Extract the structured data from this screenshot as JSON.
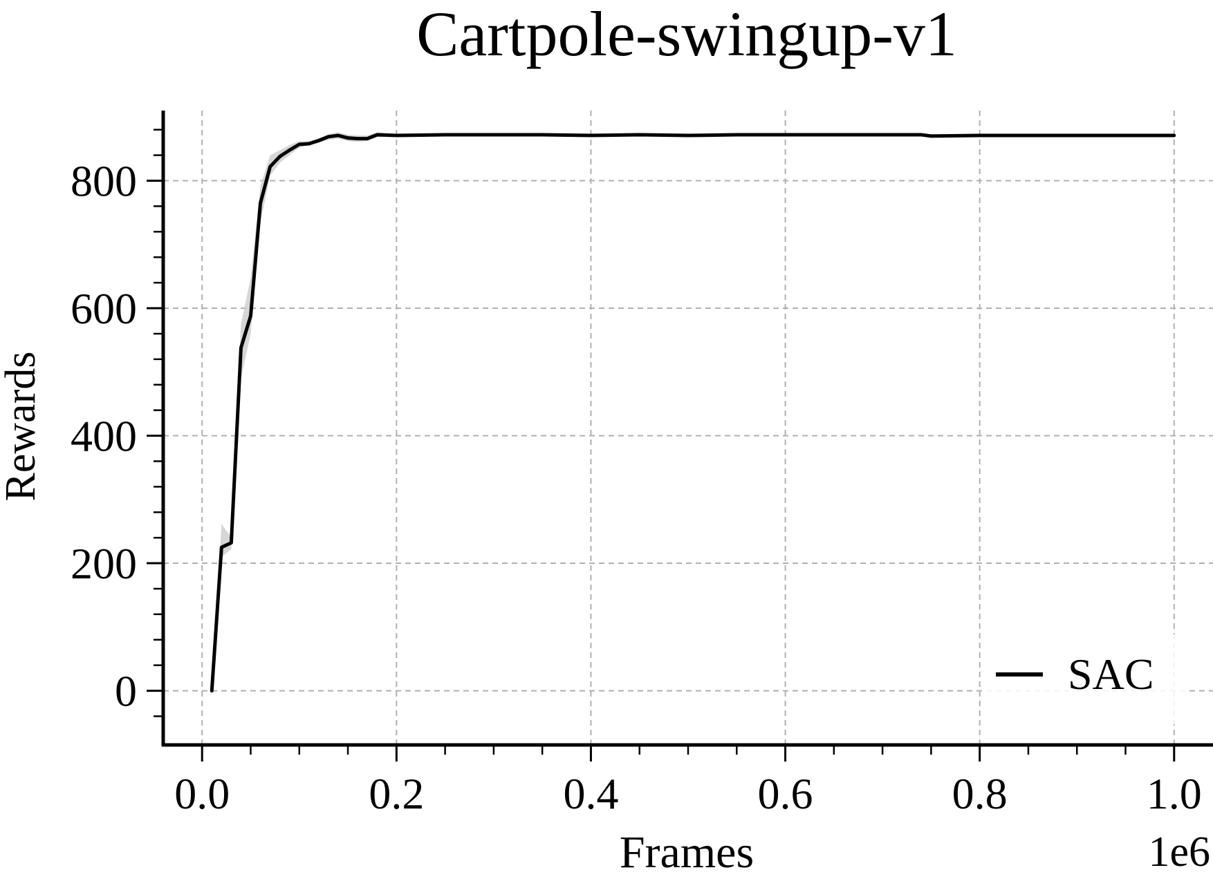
{
  "chart_data": {
    "type": "line",
    "title": "Cartpole-swingup-v1",
    "xlabel": "Frames",
    "ylabel": "Rewards",
    "x_offset_label": "1e6",
    "xlim": [
      -0.04,
      1.04
    ],
    "ylim": [
      -85,
      910
    ],
    "x_ticks": [
      0.0,
      0.2,
      0.4,
      0.6,
      0.8,
      1.0
    ],
    "x_tick_labels": [
      "0.0",
      "0.2",
      "0.4",
      "0.6",
      "0.8",
      "1.0"
    ],
    "y_ticks": [
      0,
      200,
      400,
      600,
      800
    ],
    "y_tick_labels": [
      "0",
      "200",
      "400",
      "600",
      "800"
    ],
    "grid": true,
    "legend_position": "bottom-right",
    "colors": {
      "line": "#000000",
      "band": "#c8c8c8",
      "grid": "#b0b0b0"
    },
    "series": [
      {
        "name": "SAC",
        "x": [
          0.01,
          0.02,
          0.03,
          0.04,
          0.05,
          0.06,
          0.07,
          0.08,
          0.09,
          0.1,
          0.11,
          0.12,
          0.13,
          0.14,
          0.15,
          0.16,
          0.17,
          0.18,
          0.2,
          0.25,
          0.3,
          0.35,
          0.4,
          0.45,
          0.5,
          0.55,
          0.6,
          0.65,
          0.7,
          0.74,
          0.75,
          0.8,
          0.85,
          0.9,
          0.95,
          1.0
        ],
        "y": [
          0,
          225,
          232,
          538,
          588,
          765,
          822,
          838,
          848,
          857,
          858,
          863,
          869,
          871,
          867,
          866,
          866,
          872,
          871,
          872,
          872,
          872,
          871,
          872,
          871,
          872,
          872,
          872,
          872,
          872,
          870,
          871,
          871,
          871,
          871,
          871
        ],
        "y_lower": [
          0,
          210,
          222,
          490,
          560,
          735,
          808,
          828,
          840,
          852,
          856,
          859,
          864,
          866,
          862,
          861,
          862,
          868,
          869,
          870,
          870,
          870,
          869,
          870,
          869,
          870,
          870,
          870,
          870,
          870,
          868,
          869,
          869,
          869,
          869,
          869
        ],
        "y_upper": [
          0,
          262,
          240,
          575,
          648,
          792,
          840,
          848,
          856,
          862,
          862,
          866,
          873,
          876,
          872,
          871,
          871,
          876,
          873,
          874,
          874,
          874,
          873,
          874,
          873,
          874,
          874,
          874,
          874,
          874,
          872,
          873,
          873,
          873,
          873,
          873
        ]
      }
    ]
  }
}
